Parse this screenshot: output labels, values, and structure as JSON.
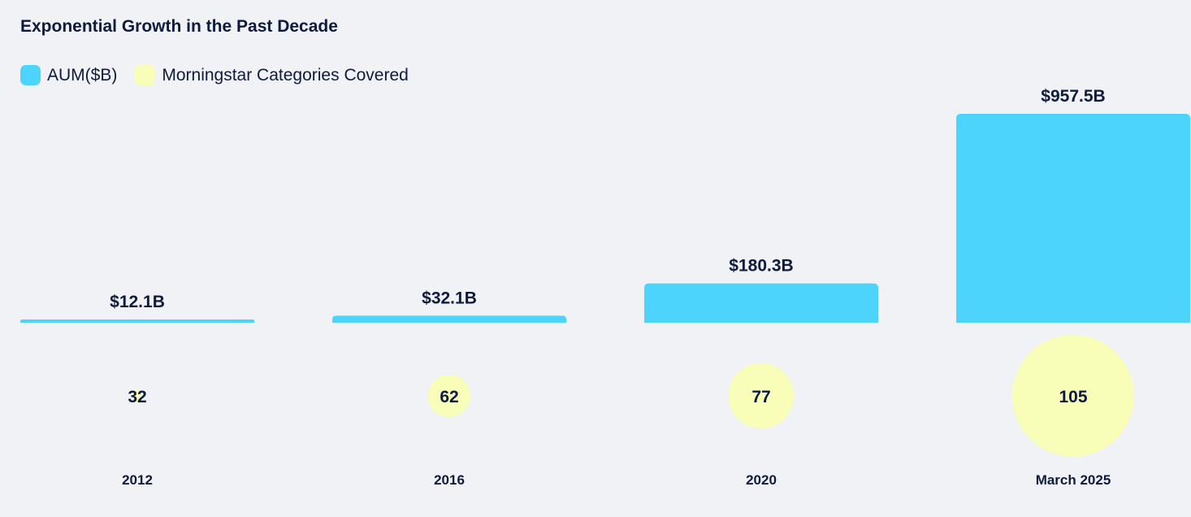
{
  "chart_data": {
    "type": "bar",
    "title": "Exponential Growth in the Past Decade",
    "categories": [
      "2012",
      "2016",
      "2020",
      "March 2025"
    ],
    "series": [
      {
        "name": "AUM($B)",
        "values": [
          12.1,
          32.1,
          180.3,
          957.5
        ],
        "labels": [
          "$12.1B",
          "$32.1B",
          "$180.3B",
          "$957.5B"
        ],
        "color": "#4dd4fd"
      },
      {
        "name": "Morningstar Categories Covered",
        "values": [
          32,
          62,
          77,
          105
        ],
        "labels": [
          "32",
          "62",
          "77",
          "105"
        ],
        "color": "#f8fdb8"
      }
    ],
    "legend_position": "top-left",
    "grid": false
  }
}
